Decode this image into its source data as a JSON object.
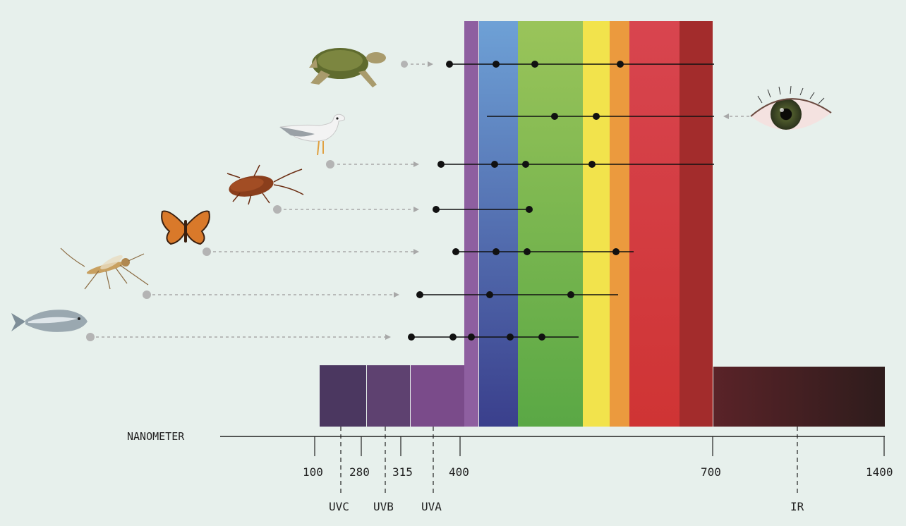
{
  "axis": {
    "label": "NANOMETER",
    "ticks": [
      "100",
      "280",
      "315",
      "400",
      "700",
      "1400"
    ],
    "bands": [
      "UVC",
      "UVB",
      "UVA",
      "IR"
    ]
  },
  "organisms": [
    {
      "name": "sea turtle",
      "icon": "turtle-icon",
      "dots": 4
    },
    {
      "name": "human",
      "icon": "eye-icon",
      "dots": 2
    },
    {
      "name": "seagull",
      "icon": "seagull-icon",
      "dots": 4
    },
    {
      "name": "cockroach",
      "icon": "cockroach-icon",
      "dots": 2
    },
    {
      "name": "butterfly",
      "icon": "butterfly-icon",
      "dots": 4
    },
    {
      "name": "mosquito",
      "icon": "mosquito-icon",
      "dots": 3
    },
    {
      "name": "fish",
      "icon": "fish-icon",
      "dots": 5
    }
  ],
  "colors": {
    "background": "#e7f0ec",
    "uvc": "#4b3760",
    "uvb": "#5e4170",
    "uva": "#7a4b8a",
    "violet": "#8e5fa0",
    "blue": "#3f66b0",
    "green": "#6cb34a",
    "yellow": "#f1e24a",
    "orange": "#ec9a3d",
    "red": "#d23a3f",
    "darkred": "#a02a2a",
    "ir": "#3a1e1e"
  }
}
